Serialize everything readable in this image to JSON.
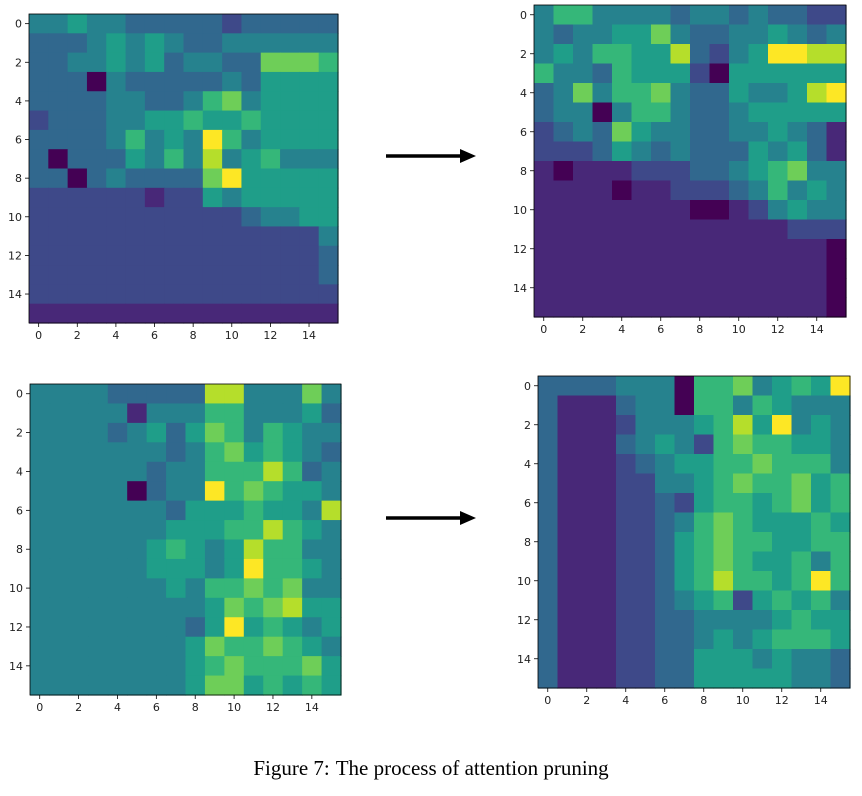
{
  "caption": {
    "label": "Figure 7:",
    "text": "The process of attention pruning"
  },
  "colormap": [
    "#440154",
    "#482878",
    "#3e4989",
    "#31688e",
    "#26828e",
    "#1f9e89",
    "#35b779",
    "#6ece58",
    "#b5de2b",
    "#fde725"
  ],
  "chart_data": [
    {
      "id": "top-left",
      "type": "heatmap",
      "title": "",
      "xlabel": "",
      "ylabel": "",
      "x_ticks": [
        0,
        2,
        4,
        6,
        8,
        10,
        12,
        14
      ],
      "y_ticks": [
        0,
        2,
        4,
        6,
        8,
        10,
        12,
        14
      ],
      "values": [
        [
          4,
          4,
          5,
          4,
          4,
          3,
          3,
          3,
          3,
          3,
          2,
          3,
          3,
          3,
          3,
          3
        ],
        [
          3,
          3,
          3,
          4,
          5,
          4,
          5,
          4,
          3,
          3,
          4,
          4,
          4,
          4,
          4,
          4
        ],
        [
          3,
          3,
          4,
          4,
          5,
          4,
          5,
          3,
          4,
          4,
          3,
          3,
          7,
          7,
          7,
          6
        ],
        [
          3,
          3,
          3,
          0,
          4,
          3,
          3,
          3,
          3,
          3,
          4,
          3,
          5,
          5,
          5,
          5
        ],
        [
          3,
          3,
          3,
          3,
          4,
          4,
          3,
          3,
          4,
          6,
          7,
          4,
          5,
          5,
          5,
          5
        ],
        [
          2,
          3,
          3,
          3,
          4,
          4,
          5,
          5,
          6,
          5,
          5,
          6,
          5,
          5,
          5,
          5
        ],
        [
          3,
          3,
          3,
          3,
          4,
          6,
          4,
          5,
          4,
          9,
          6,
          4,
          5,
          5,
          5,
          5
        ],
        [
          3,
          0,
          3,
          3,
          3,
          5,
          4,
          6,
          4,
          8,
          4,
          5,
          6,
          4,
          4,
          4
        ],
        [
          3,
          3,
          0,
          3,
          4,
          3,
          3,
          3,
          3,
          7,
          9,
          5,
          5,
          5,
          5,
          5
        ],
        [
          2,
          2,
          2,
          2,
          2,
          2,
          1,
          2,
          2,
          5,
          4,
          5,
          5,
          5,
          5,
          5
        ],
        [
          2,
          2,
          2,
          2,
          2,
          2,
          2,
          2,
          2,
          2,
          2,
          3,
          4,
          4,
          5,
          5
        ],
        [
          2,
          2,
          2,
          2,
          2,
          2,
          2,
          2,
          2,
          2,
          2,
          2,
          2,
          2,
          2,
          4
        ],
        [
          2,
          2,
          2,
          2,
          2,
          2,
          2,
          2,
          2,
          2,
          2,
          2,
          2,
          2,
          2,
          3
        ],
        [
          2,
          2,
          2,
          2,
          2,
          2,
          2,
          2,
          2,
          2,
          2,
          2,
          2,
          2,
          2,
          3
        ],
        [
          2,
          2,
          2,
          2,
          2,
          2,
          2,
          2,
          2,
          2,
          2,
          2,
          2,
          2,
          2,
          2
        ],
        [
          1,
          1,
          1,
          1,
          1,
          1,
          1,
          1,
          1,
          1,
          1,
          1,
          1,
          1,
          1,
          1
        ]
      ]
    },
    {
      "id": "top-right",
      "type": "heatmap",
      "title": "",
      "xlabel": "",
      "ylabel": "",
      "x_ticks": [
        0,
        2,
        4,
        6,
        8,
        10,
        12,
        14
      ],
      "y_ticks": [
        0,
        2,
        4,
        6,
        8,
        10,
        12,
        14
      ],
      "values": [
        [
          4,
          6,
          6,
          4,
          4,
          4,
          4,
          3,
          4,
          4,
          3,
          4,
          3,
          3,
          2,
          2
        ],
        [
          4,
          3,
          4,
          4,
          5,
          5,
          7,
          4,
          3,
          3,
          4,
          4,
          5,
          4,
          3,
          4
        ],
        [
          4,
          5,
          4,
          6,
          6,
          5,
          5,
          8,
          3,
          2,
          4,
          5,
          9,
          9,
          8,
          8
        ],
        [
          6,
          4,
          4,
          3,
          6,
          5,
          5,
          5,
          2,
          0,
          5,
          5,
          5,
          5,
          5,
          5
        ],
        [
          3,
          4,
          7,
          4,
          6,
          6,
          7,
          4,
          3,
          3,
          5,
          4,
          4,
          5,
          8,
          9
        ],
        [
          3,
          4,
          4,
          0,
          4,
          6,
          6,
          4,
          3,
          3,
          4,
          5,
          5,
          5,
          5,
          5
        ],
        [
          2,
          3,
          4,
          3,
          7,
          5,
          4,
          4,
          3,
          3,
          4,
          4,
          5,
          4,
          3,
          1
        ],
        [
          2,
          2,
          2,
          3,
          5,
          4,
          3,
          4,
          3,
          3,
          3,
          5,
          4,
          5,
          3,
          1
        ],
        [
          1,
          0,
          1,
          1,
          1,
          2,
          2,
          2,
          3,
          3,
          4,
          5,
          6,
          7,
          4,
          4
        ],
        [
          1,
          1,
          1,
          1,
          0,
          1,
          1,
          2,
          2,
          2,
          3,
          4,
          6,
          4,
          5,
          4
        ],
        [
          1,
          1,
          1,
          1,
          1,
          1,
          1,
          1,
          0,
          0,
          1,
          2,
          4,
          5,
          4,
          4
        ],
        [
          1,
          1,
          1,
          1,
          1,
          1,
          1,
          1,
          1,
          1,
          1,
          1,
          1,
          2,
          2,
          2
        ],
        [
          1,
          1,
          1,
          1,
          1,
          1,
          1,
          1,
          1,
          1,
          1,
          1,
          1,
          1,
          1,
          0
        ],
        [
          1,
          1,
          1,
          1,
          1,
          1,
          1,
          1,
          1,
          1,
          1,
          1,
          1,
          1,
          1,
          0
        ],
        [
          1,
          1,
          1,
          1,
          1,
          1,
          1,
          1,
          1,
          1,
          1,
          1,
          1,
          1,
          1,
          0
        ],
        [
          1,
          1,
          1,
          1,
          1,
          1,
          1,
          1,
          1,
          1,
          1,
          1,
          1,
          1,
          1,
          0
        ]
      ]
    },
    {
      "id": "bottom-left",
      "type": "heatmap",
      "title": "",
      "xlabel": "",
      "ylabel": "",
      "x_ticks": [
        0,
        2,
        4,
        6,
        8,
        10,
        12,
        14
      ],
      "y_ticks": [
        0,
        2,
        4,
        6,
        8,
        10,
        12,
        14
      ],
      "values": [
        [
          4,
          4,
          4,
          4,
          3,
          3,
          3,
          3,
          3,
          8,
          8,
          4,
          4,
          4,
          7,
          4
        ],
        [
          4,
          4,
          4,
          4,
          4,
          1,
          4,
          4,
          4,
          6,
          6,
          4,
          4,
          4,
          5,
          3
        ],
        [
          4,
          4,
          4,
          4,
          3,
          4,
          5,
          3,
          5,
          7,
          6,
          4,
          6,
          5,
          4,
          4
        ],
        [
          4,
          4,
          4,
          4,
          4,
          4,
          4,
          3,
          4,
          6,
          7,
          5,
          6,
          5,
          4,
          3
        ],
        [
          4,
          4,
          4,
          4,
          4,
          4,
          3,
          4,
          4,
          6,
          6,
          6,
          8,
          6,
          3,
          4
        ],
        [
          4,
          4,
          4,
          4,
          4,
          0,
          3,
          4,
          4,
          9,
          6,
          7,
          6,
          5,
          5,
          4
        ],
        [
          4,
          4,
          4,
          4,
          4,
          4,
          4,
          3,
          5,
          5,
          5,
          6,
          5,
          5,
          4,
          8
        ],
        [
          4,
          4,
          4,
          4,
          4,
          4,
          4,
          5,
          5,
          5,
          6,
          6,
          8,
          6,
          5,
          4
        ],
        [
          4,
          4,
          4,
          4,
          4,
          4,
          5,
          6,
          5,
          4,
          5,
          8,
          6,
          6,
          4,
          4
        ],
        [
          4,
          4,
          4,
          4,
          4,
          4,
          5,
          5,
          5,
          4,
          5,
          9,
          6,
          6,
          5,
          4
        ],
        [
          4,
          4,
          4,
          4,
          4,
          4,
          4,
          5,
          4,
          6,
          6,
          7,
          6,
          7,
          4,
          4
        ],
        [
          4,
          4,
          4,
          4,
          4,
          4,
          4,
          4,
          4,
          5,
          7,
          6,
          7,
          8,
          5,
          5
        ],
        [
          4,
          4,
          4,
          4,
          4,
          4,
          4,
          4,
          3,
          5,
          9,
          5,
          6,
          5,
          4,
          5
        ],
        [
          4,
          4,
          4,
          4,
          4,
          4,
          4,
          4,
          5,
          7,
          6,
          6,
          7,
          6,
          5,
          4
        ],
        [
          4,
          4,
          4,
          4,
          4,
          4,
          4,
          4,
          5,
          6,
          7,
          6,
          6,
          6,
          7,
          5
        ],
        [
          4,
          4,
          4,
          4,
          4,
          4,
          4,
          4,
          5,
          7,
          7,
          5,
          6,
          5,
          6,
          5
        ]
      ]
    },
    {
      "id": "bottom-right",
      "type": "heatmap",
      "title": "",
      "xlabel": "",
      "ylabel": "",
      "x_ticks": [
        0,
        2,
        4,
        6,
        8,
        10,
        12,
        14
      ],
      "y_ticks": [
        0,
        2,
        4,
        6,
        8,
        10,
        12,
        14
      ],
      "values": [
        [
          3,
          3,
          3,
          3,
          4,
          4,
          4,
          0,
          6,
          6,
          7,
          4,
          5,
          6,
          5,
          9
        ],
        [
          3,
          1,
          1,
          1,
          3,
          4,
          4,
          0,
          6,
          6,
          4,
          6,
          5,
          4,
          4,
          4
        ],
        [
          3,
          1,
          1,
          1,
          2,
          4,
          4,
          4,
          5,
          6,
          8,
          5,
          9,
          4,
          5,
          4
        ],
        [
          3,
          1,
          1,
          1,
          3,
          4,
          5,
          4,
          2,
          6,
          7,
          6,
          6,
          5,
          5,
          4
        ],
        [
          3,
          1,
          1,
          1,
          2,
          3,
          4,
          5,
          5,
          6,
          6,
          7,
          6,
          6,
          6,
          4
        ],
        [
          3,
          1,
          1,
          1,
          2,
          2,
          4,
          4,
          5,
          6,
          7,
          6,
          6,
          7,
          5,
          6
        ],
        [
          3,
          1,
          1,
          1,
          2,
          2,
          3,
          2,
          5,
          6,
          6,
          5,
          6,
          7,
          5,
          6
        ],
        [
          3,
          1,
          1,
          1,
          2,
          2,
          3,
          4,
          6,
          7,
          6,
          5,
          5,
          5,
          6,
          5
        ],
        [
          3,
          1,
          1,
          1,
          2,
          2,
          3,
          5,
          6,
          7,
          6,
          6,
          5,
          5,
          6,
          6
        ],
        [
          3,
          1,
          1,
          1,
          2,
          2,
          3,
          5,
          6,
          7,
          6,
          5,
          5,
          6,
          4,
          6
        ],
        [
          3,
          1,
          1,
          1,
          2,
          2,
          3,
          5,
          6,
          8,
          6,
          6,
          5,
          6,
          9,
          6
        ],
        [
          3,
          1,
          1,
          1,
          2,
          2,
          3,
          4,
          5,
          6,
          2,
          5,
          6,
          5,
          6,
          4
        ],
        [
          3,
          1,
          1,
          1,
          2,
          2,
          3,
          3,
          4,
          4,
          4,
          4,
          5,
          6,
          5,
          5
        ],
        [
          3,
          1,
          1,
          1,
          2,
          2,
          3,
          3,
          4,
          5,
          4,
          5,
          6,
          6,
          6,
          5
        ],
        [
          3,
          1,
          1,
          1,
          2,
          2,
          3,
          3,
          5,
          5,
          5,
          4,
          5,
          4,
          4,
          3
        ],
        [
          3,
          1,
          1,
          1,
          2,
          2,
          3,
          3,
          5,
          5,
          5,
          5,
          5,
          4,
          4,
          3
        ]
      ]
    }
  ]
}
